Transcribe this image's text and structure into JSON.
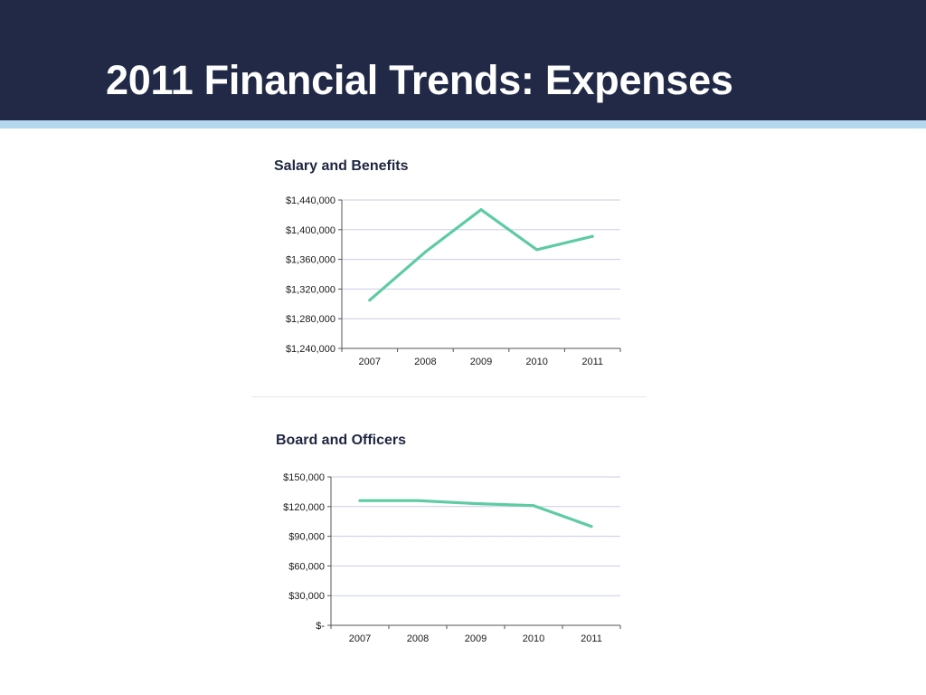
{
  "slide": {
    "title": "2011 Financial Trends: Expenses"
  },
  "colors": {
    "header_bg": "#212947",
    "header_stripe": "#b5d8ee",
    "line": "#5ecba3",
    "gridline": "#c9cde6"
  },
  "chart_data": [
    {
      "type": "line",
      "title": "Salary and Benefits",
      "categories": [
        "2007",
        "2008",
        "2009",
        "2010",
        "2011"
      ],
      "series": [
        {
          "values": [
            1305000,
            1370000,
            1427000,
            1373000,
            1391000
          ]
        }
      ],
      "ylim": [
        1240000,
        1440000
      ],
      "yticks": [
        1240000,
        1280000,
        1320000,
        1360000,
        1400000,
        1440000
      ],
      "ytick_labels": [
        "$1,240,000",
        "$1,280,000",
        "$1,320,000",
        "$1,360,000",
        "$1,400,000",
        "$1,440,000"
      ],
      "grid": true,
      "legend": "none"
    },
    {
      "type": "line",
      "title": "Board and Officers",
      "categories": [
        "2007",
        "2008",
        "2009",
        "2010",
        "2011"
      ],
      "series": [
        {
          "values": [
            126000,
            126000,
            123000,
            121000,
            100000
          ]
        }
      ],
      "ylim": [
        0,
        150000
      ],
      "yticks": [
        0,
        30000,
        60000,
        90000,
        120000,
        150000
      ],
      "ytick_labels": [
        "$-",
        "$30,000",
        "$60,000",
        "$90,000",
        "$120,000",
        "$150,000"
      ],
      "grid": true,
      "legend": "none"
    }
  ]
}
